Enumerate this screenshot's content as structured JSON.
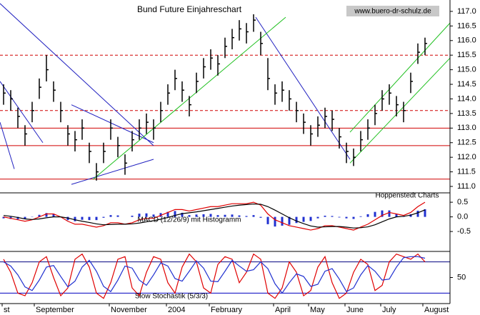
{
  "chart_data": [
    {
      "type": "ohlc",
      "title": "Bund Future Einjahreschart",
      "source": "www.buero-dr-schulz.de",
      "note": "Hoppenstedt Charts",
      "ylim": [
        110.78,
        117.39
      ],
      "yticks": [
        {
          "value": 111,
          "label": "111.0"
        },
        {
          "value": 111.5,
          "label": "111.5"
        },
        {
          "value": 112,
          "label": "112.0"
        },
        {
          "value": 112.5,
          "label": "112.5"
        },
        {
          "value": 113,
          "label": "113.0"
        },
        {
          "value": 113.5,
          "label": "113.5"
        },
        {
          "value": 114,
          "label": "114.0"
        },
        {
          "value": 114.5,
          "label": "114.5"
        },
        {
          "value": 115,
          "label": "115.0"
        },
        {
          "value": 115.5,
          "label": "115.5"
        },
        {
          "value": 116,
          "label": "116.0"
        },
        {
          "value": 116.5,
          "label": "116.5"
        },
        {
          "value": 117,
          "label": "117.0"
        }
      ],
      "color": "#000000",
      "high": [
        114.5,
        114.3,
        113.7,
        113.1,
        113.9,
        114.7,
        115.5,
        114.6,
        113.9,
        113.1,
        112.9,
        113.3,
        112.5,
        111.8,
        112.5,
        113.3,
        112.7,
        112.1,
        112.9,
        113.3,
        113.5,
        113.3,
        113.9,
        114.5,
        115.0,
        114.6,
        114.1,
        114.9,
        115.4,
        115.7,
        115.5,
        116.1,
        116.4,
        116.7,
        116.6,
        116.9,
        116.3,
        115.4,
        114.5,
        114.6,
        114.3,
        113.9,
        113.5,
        113.1,
        113.4,
        113.7,
        113.6,
        113.0,
        112.5,
        112.3,
        112.9,
        113.3,
        113.8,
        114.3,
        114.5,
        114.1,
        113.9,
        114.9,
        115.9,
        116.1
      ],
      "low": [
        113.8,
        113.6,
        113.0,
        112.4,
        113.2,
        114.0,
        114.6,
        113.9,
        113.2,
        112.4,
        112.2,
        112.6,
        111.8,
        111.2,
        111.8,
        112.6,
        112.0,
        111.4,
        112.2,
        112.6,
        112.8,
        112.6,
        113.2,
        113.8,
        114.3,
        113.9,
        113.4,
        114.2,
        114.7,
        115.0,
        114.8,
        115.4,
        115.7,
        116.0,
        115.9,
        116.3,
        115.5,
        114.3,
        113.8,
        113.9,
        113.6,
        113.2,
        112.8,
        112.4,
        112.7,
        113.0,
        112.9,
        112.3,
        111.8,
        111.7,
        112.2,
        112.6,
        113.1,
        113.6,
        113.8,
        113.4,
        113.2,
        114.2,
        115.2,
        115.5
      ],
      "close": [
        114.2,
        114.0,
        113.4,
        112.8,
        113.6,
        114.4,
        115.0,
        114.3,
        113.6,
        112.8,
        112.6,
        113.0,
        112.2,
        111.5,
        112.2,
        113.0,
        112.4,
        111.8,
        112.6,
        113.0,
        113.2,
        113.0,
        113.6,
        114.2,
        114.7,
        114.3,
        113.8,
        114.6,
        115.1,
        115.4,
        115.2,
        115.8,
        116.1,
        116.4,
        116.3,
        116.7,
        115.9,
        114.7,
        114.2,
        114.3,
        114.0,
        113.6,
        113.2,
        112.8,
        113.1,
        113.4,
        113.3,
        112.7,
        112.2,
        112.0,
        112.6,
        113.0,
        113.5,
        114.0,
        114.2,
        113.8,
        113.6,
        114.6,
        115.6,
        115.9
      ],
      "hlines": [
        {
          "value": 115.5,
          "color": "#d00000",
          "dashed": true
        },
        {
          "value": 113.6,
          "color": "#d00000",
          "dashed": true
        },
        {
          "value": 113.0,
          "color": "#d00000",
          "dashed": false
        },
        {
          "value": 112.4,
          "color": "#d00000",
          "dashed": false
        },
        {
          "value": 111.25,
          "color": "#d00000",
          "dashed": false
        }
      ],
      "trendlines": [
        {
          "x": [
            -0.5,
            21
          ],
          "y": [
            117.27,
            112.4
          ],
          "color": "#2020c0"
        },
        {
          "x": [
            -0.5,
            5.5
          ],
          "y": [
            114.6,
            112.5
          ],
          "color": "#2020c0"
        },
        {
          "x": [
            -0.5,
            1.5
          ],
          "y": [
            113.2,
            111.6
          ],
          "color": "#2020c0"
        },
        {
          "x": [
            9.5,
            21
          ],
          "y": [
            113.8,
            112.5
          ],
          "color": "#2020c0"
        },
        {
          "x": [
            9.5,
            21
          ],
          "y": [
            111.07,
            111.93
          ],
          "color": "#2020c0"
        },
        {
          "x": [
            35.3,
            48.5
          ],
          "y": [
            116.8,
            111.93
          ],
          "color": "#2020c0"
        },
        {
          "x": [
            12.5,
            39.5
          ],
          "y": [
            111.24,
            116.8
          ],
          "color": "#20c020"
        },
        {
          "x": [
            48.5,
            62.5
          ],
          "y": [
            111.8,
            115.4
          ],
          "color": "#20c020"
        },
        {
          "x": [
            48.5,
            62.5
          ],
          "y": [
            112.86,
            116.6
          ],
          "color": "#20c020"
        }
      ]
    },
    {
      "type": "macd",
      "title": "MACD (12/26/9) mit Histogramm",
      "ylim": [
        -1.18,
        0.82
      ],
      "yticks": [
        0.5,
        {
          "value": 0,
          "label": "0.0"
        },
        -0.5
      ],
      "series": [
        {
          "kind": "bar",
          "color": "#2030d0",
          "values": [
            -0.05,
            -0.07,
            -0.08,
            -0.08,
            -0.01,
            0.07,
            0.13,
            0.1,
            0.0,
            -0.11,
            -0.15,
            -0.1,
            -0.11,
            -0.11,
            -0.03,
            0.06,
            0.05,
            0.0,
            0.04,
            0.11,
            0.12,
            0.08,
            0.13,
            0.17,
            0.2,
            0.14,
            0.06,
            0.08,
            0.09,
            0.1,
            0.06,
            0.07,
            0.08,
            0.05,
            0.03,
            0.06,
            -0.03,
            -0.25,
            -0.33,
            -0.3,
            -0.27,
            -0.21,
            -0.17,
            -0.14,
            -0.05,
            0.04,
            0.03,
            -0.02,
            -0.05,
            -0.07,
            0.02,
            0.09,
            0.17,
            0.22,
            0.22,
            0.1,
            0.03,
            0.09,
            0.21,
            0.26
          ]
        },
        {
          "kind": "line",
          "color": "#e00000",
          "values": [
            0.0,
            -0.05,
            -0.1,
            -0.15,
            -0.1,
            0.0,
            0.1,
            0.1,
            0.0,
            -0.15,
            -0.25,
            -0.25,
            -0.3,
            -0.35,
            -0.3,
            -0.2,
            -0.2,
            -0.25,
            -0.2,
            -0.1,
            -0.05,
            -0.05,
            0.05,
            0.15,
            0.25,
            0.25,
            0.2,
            0.25,
            0.3,
            0.35,
            0.35,
            0.4,
            0.45,
            0.45,
            0.45,
            0.5,
            0.4,
            0.1,
            -0.1,
            -0.2,
            -0.3,
            -0.35,
            -0.4,
            -0.45,
            -0.4,
            -0.3,
            -0.3,
            -0.35,
            -0.4,
            -0.45,
            -0.35,
            -0.25,
            -0.1,
            0.05,
            0.15,
            0.1,
            0.05,
            0.15,
            0.35,
            0.5
          ]
        },
        {
          "kind": "line",
          "color": "#000000",
          "values": [
            0.05,
            0.02,
            -0.02,
            -0.07,
            -0.09,
            -0.07,
            -0.03,
            0.0,
            0.0,
            -0.04,
            -0.1,
            -0.15,
            -0.19,
            -0.24,
            -0.27,
            -0.26,
            -0.25,
            -0.25,
            -0.24,
            -0.21,
            -0.17,
            -0.13,
            -0.08,
            -0.02,
            0.05,
            0.11,
            0.14,
            0.17,
            0.21,
            0.25,
            0.29,
            0.33,
            0.37,
            0.4,
            0.42,
            0.44,
            0.43,
            0.35,
            0.23,
            0.1,
            -0.03,
            -0.14,
            -0.23,
            -0.31,
            -0.35,
            -0.34,
            -0.33,
            -0.33,
            -0.35,
            -0.38,
            -0.37,
            -0.34,
            -0.27,
            -0.17,
            -0.07,
            0.0,
            0.02,
            0.06,
            0.14,
            0.24
          ]
        }
      ]
    },
    {
      "type": "line",
      "title": "Slow Stochastik (5/3/3)",
      "ylim": [
        0,
        100
      ],
      "yticks": [
        50
      ],
      "levels": [
        {
          "value": 80,
          "color": "#000080"
        },
        {
          "value": 20,
          "color": "#0000c0"
        }
      ],
      "xlim": [
        -0.5,
        62.5
      ],
      "xticks": [
        {
          "value": -0.2,
          "label": "st"
        },
        {
          "value": 4.3,
          "label": "September"
        },
        {
          "value": 14.8,
          "label": "November"
        },
        {
          "value": 22.8,
          "label": "2004"
        },
        {
          "value": 28.8,
          "label": "February"
        },
        {
          "value": 37.8,
          "label": "April"
        },
        {
          "value": 42.7,
          "label": "May"
        },
        {
          "value": 47.8,
          "label": "June"
        },
        {
          "value": 52.8,
          "label": "July"
        },
        {
          "value": 58.7,
          "label": "August"
        }
      ],
      "series": [
        {
          "color": "#e00000",
          "values": [
            85,
            60,
            20,
            15,
            40,
            80,
            90,
            50,
            15,
            30,
            85,
            95,
            70,
            20,
            10,
            40,
            85,
            90,
            30,
            15,
            60,
            90,
            85,
            40,
            20,
            70,
            95,
            80,
            30,
            20,
            75,
            90,
            85,
            40,
            60,
            95,
            85,
            20,
            10,
            30,
            80,
            60,
            15,
            25,
            70,
            90,
            40,
            10,
            20,
            60,
            85,
            75,
            25,
            35,
            80,
            95,
            90,
            85,
            95,
            80
          ]
        },
        {
          "color": "#2030d0",
          "values": [
            80,
            72,
            55,
            32,
            25,
            45,
            70,
            73,
            52,
            32,
            43,
            70,
            83,
            62,
            33,
            23,
            45,
            72,
            68,
            45,
            35,
            55,
            78,
            72,
            48,
            43,
            62,
            82,
            68,
            43,
            42,
            62,
            83,
            72,
            62,
            65,
            80,
            67,
            38,
            20,
            40,
            57,
            52,
            33,
            37,
            62,
            67,
            47,
            23,
            30,
            55,
            73,
            62,
            45,
            47,
            70,
            88,
            90,
            90,
            87
          ]
        }
      ]
    }
  ]
}
